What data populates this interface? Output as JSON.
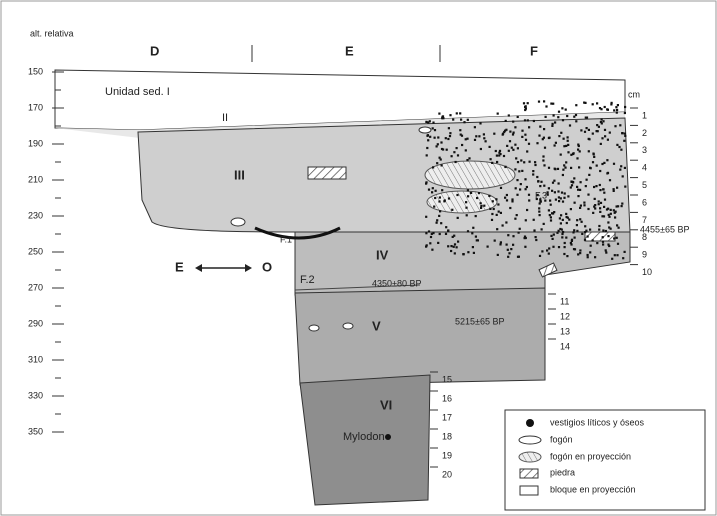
{
  "header": {
    "axis_title": "alt. relativa",
    "columns": [
      "D",
      "E",
      "F"
    ]
  },
  "depth_scale": [
    150,
    170,
    190,
    210,
    230,
    250,
    270,
    290,
    310,
    330,
    350
  ],
  "right_scale": {
    "unit": "cm",
    "levels": [
      1,
      2,
      3,
      4,
      5,
      6,
      7,
      8,
      9,
      10,
      11,
      12,
      13,
      14,
      15,
      16,
      17,
      18,
      19,
      20
    ]
  },
  "units": {
    "unit_1": "Unidad sed. I",
    "unit_2": "II",
    "unit_3": "III",
    "unit_4": "IV",
    "unit_5": "V",
    "unit_6": "VI"
  },
  "features": {
    "f1": "F.1",
    "f2": "F.2",
    "f3": "F.3"
  },
  "dates": {
    "d1": "4455±65 BP",
    "d2": "4350±80 BP",
    "d3": "5215±65 BP"
  },
  "orientation": {
    "left": "E",
    "right": "O"
  },
  "find": "Mylodon",
  "legend": [
    "vestigios líticos y óseos",
    "fogón",
    "fogón en proyección",
    "piedra",
    "bloque en proyección"
  ]
}
